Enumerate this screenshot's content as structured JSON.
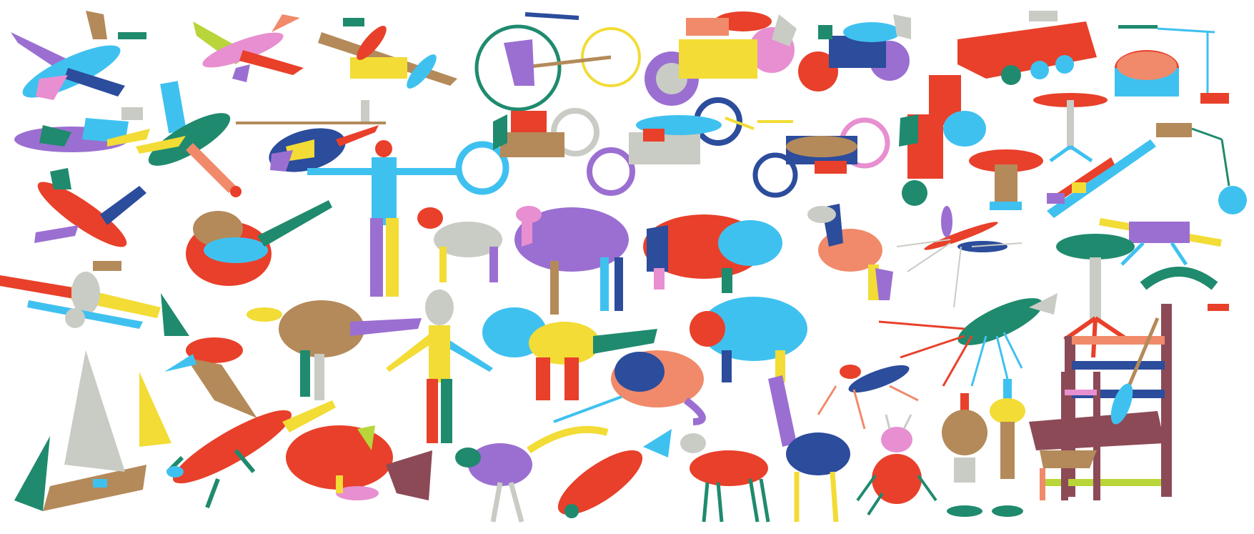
{
  "palette": {
    "red": "#e8402a",
    "sky": "#3fc1f0",
    "yellow": "#f2dc35",
    "purple": "#9b6fd1",
    "teal": "#1f8a6e",
    "navy": "#2c4c9c",
    "tan": "#b48a5a",
    "salmon": "#f08a6a",
    "gray": "#c9ccc4",
    "pink": "#e78fd0",
    "maroon": "#8c4a57",
    "lime": "#b8d53a"
  },
  "objects": [
    "airplane",
    "airplane",
    "airplane",
    "airplane",
    "airplane",
    "airplane",
    "airplane",
    "helicopter",
    "bicycle",
    "motorcycle",
    "motorcycle",
    "motorcycle",
    "motorcycle",
    "motorcycle",
    "motorcycle",
    "tank",
    "lamp",
    "lamp",
    "table",
    "table",
    "table",
    "stool",
    "rifle",
    "rifle",
    "rifle",
    "human",
    "alien",
    "fish",
    "fish",
    "fish",
    "sheep",
    "camel",
    "rhino",
    "horse",
    "cow",
    "dinosaur",
    "dinosaur",
    "dinosaur",
    "pterosaur",
    "chameleon",
    "lizard",
    "giraffe",
    "antelope",
    "mosquito",
    "lobster",
    "mantis",
    "beetle",
    "ship",
    "vase",
    "vase",
    "chair",
    "chair",
    "knife",
    "screwdriver",
    "sickle"
  ]
}
